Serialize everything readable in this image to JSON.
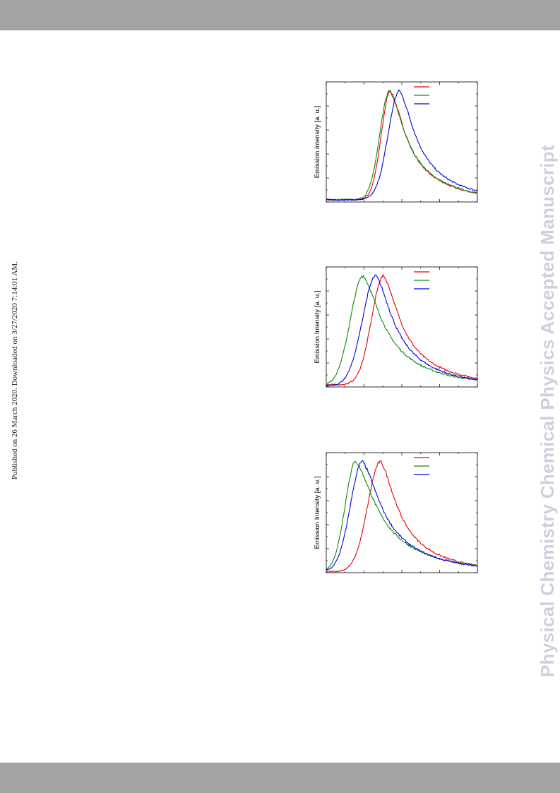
{
  "header": {
    "band_color": "#a3a3a3"
  },
  "footer": {
    "band_color": "#a3a3a3"
  },
  "sidebar_note": "Published on 26 March 2020. Downloaded on 3/27/2020 7:14:01 AM.",
  "watermark": "Physical Chemistry Chemical Physics Accepted Manuscript",
  "colors": {
    "red": "#e8000b",
    "green": "#0a8a0a",
    "blue": "#0000e6"
  },
  "chart_data": [
    {
      "type": "line",
      "ylabel": "Emission intensity [a. u.]",
      "xlim": [
        0,
        100
      ],
      "ylim": [
        0,
        1.08
      ],
      "grid": false,
      "legend_position": "top-right",
      "series": [
        {
          "color": "red",
          "peak": 42.5,
          "width_left": 6.0,
          "tail": 0.27,
          "baseline": 0.02,
          "x": [],
          "values": []
        },
        {
          "color": "green",
          "peak": 42.0,
          "width_left": 6.5,
          "tail": 0.26,
          "baseline": 0.02,
          "x": [],
          "values": []
        },
        {
          "color": "blue",
          "peak": 48.5,
          "width_left": 7.5,
          "tail": 0.26,
          "baseline": 0.02,
          "x": [],
          "values": []
        }
      ]
    },
    {
      "type": "line",
      "ylabel": "Emission Intensity [a. u.]",
      "xlim": [
        0,
        100
      ],
      "ylim": [
        0,
        1.08
      ],
      "grid": false,
      "legend_position": "top-right",
      "series": [
        {
          "color": "red",
          "peak": 38.0,
          "width_left": 8.0,
          "tail": 0.25,
          "baseline": 0.02,
          "x": [],
          "values": []
        },
        {
          "color": "green",
          "peak": 24.5,
          "width_left": 8.5,
          "tail": 0.22,
          "baseline": 0.01,
          "x": [],
          "values": []
        },
        {
          "color": "blue",
          "peak": 33.0,
          "width_left": 9.0,
          "tail": 0.24,
          "baseline": 0.01,
          "x": [],
          "values": []
        }
      ]
    },
    {
      "type": "line",
      "ylabel": "Emission Intensity [a. u.]",
      "xlim": [
        0,
        100
      ],
      "ylim": [
        0,
        1.08
      ],
      "grid": false,
      "legend_position": "top-right",
      "series": [
        {
          "color": "red",
          "peak": 36.0,
          "width_left": 8.5,
          "tail": 0.25,
          "baseline": 0.01,
          "x": [],
          "values": []
        },
        {
          "color": "green",
          "peak": 19.5,
          "width_left": 7.0,
          "tail": 0.2,
          "baseline": 0.01,
          "x": [],
          "values": []
        },
        {
          "color": "blue",
          "peak": 24.0,
          "width_left": 8.0,
          "tail": 0.22,
          "baseline": 0.01,
          "x": [],
          "values": []
        }
      ]
    }
  ]
}
